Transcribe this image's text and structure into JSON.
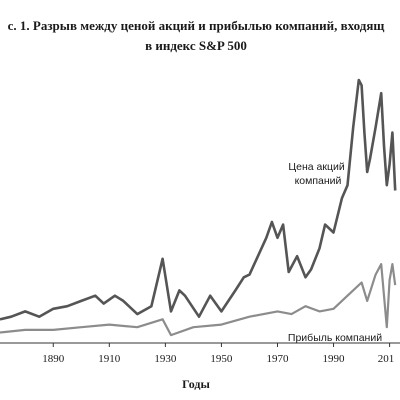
{
  "chart_data": {
    "type": "line",
    "title_line1": "с. 1. Разрыв между ценой акций и прибылью компаний, входящ",
    "title_line2": "в индекс S&P 500",
    "xlabel": "Годы",
    "ylabel": "",
    "x_ticks": [
      "1890",
      "1910",
      "1930",
      "1950",
      "1970",
      "1990",
      "201"
    ],
    "xlim": [
      1871,
      2013
    ],
    "ylim": [
      0,
      100
    ],
    "grid": false,
    "series": [
      {
        "name": "Цена акций компаний",
        "name_lines": [
          "Цена акций",
          "компаний"
        ],
        "color": "#555555",
        "x": [
          1871,
          1875,
          1880,
          1885,
          1890,
          1895,
          1900,
          1905,
          1908,
          1912,
          1915,
          1918,
          1920,
          1925,
          1929,
          1932,
          1935,
          1937,
          1942,
          1946,
          1950,
          1955,
          1958,
          1960,
          1963,
          1966,
          1968,
          1970,
          1972,
          1974,
          1977,
          1980,
          1982,
          1985,
          1987,
          1990,
          1993,
          1995,
          1997,
          1999,
          2000,
          2001,
          2002,
          2003,
          2005,
          2007,
          2008,
          2009,
          2010,
          2011,
          2012
        ],
        "y": [
          9,
          10,
          12,
          10,
          13,
          14,
          16,
          18,
          15,
          18,
          16,
          13,
          11,
          14,
          32,
          12,
          20,
          18,
          10,
          18,
          12,
          20,
          25,
          26,
          33,
          40,
          46,
          40,
          45,
          27,
          33,
          25,
          28,
          36,
          45,
          42,
          55,
          60,
          82,
          100,
          98,
          80,
          65,
          70,
          82,
          95,
          75,
          60,
          68,
          80,
          58
        ]
      },
      {
        "name": "Прибыль компаний",
        "color": "#8c8c8c",
        "x": [
          1871,
          1880,
          1890,
          1900,
          1910,
          1920,
          1929,
          1932,
          1940,
          1950,
          1960,
          1970,
          1975,
          1980,
          1985,
          1990,
          1995,
          2000,
          2002,
          2005,
          2007,
          2008,
          2009,
          2010,
          2011,
          2012
        ],
        "y": [
          4,
          5,
          5,
          6,
          7,
          6,
          9,
          3,
          6,
          7,
          10,
          12,
          11,
          14,
          12,
          13,
          18,
          23,
          16,
          26,
          30,
          18,
          6,
          24,
          30,
          22
        ]
      }
    ]
  }
}
